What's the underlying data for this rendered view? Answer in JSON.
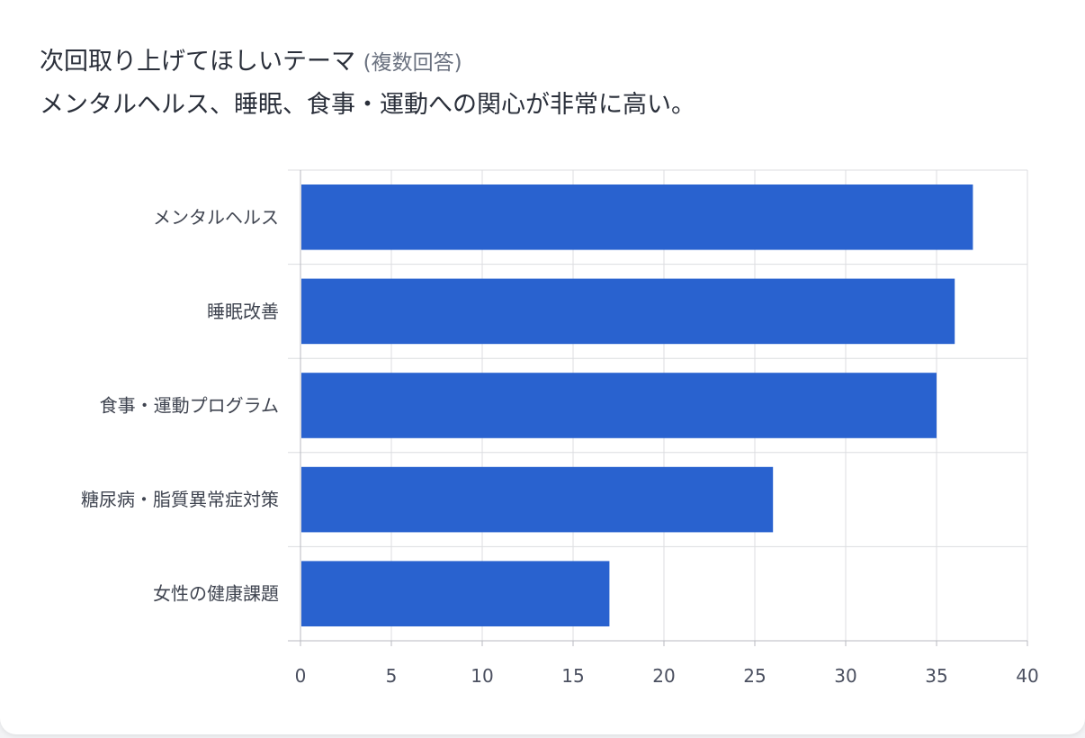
{
  "header": {
    "title": "次回取り上げてほしいテーマ",
    "title_note": "(複数回答)",
    "subtitle": "メンタルヘルス、睡眠、食事・運動への関心が非常に高い。"
  },
  "chart_data": {
    "type": "bar",
    "orientation": "horizontal",
    "categories": [
      "メンタルヘルス",
      "睡眠改善",
      "食事・運動プログラム",
      "糖尿病・脂質異常症対策",
      "女性の健康課題"
    ],
    "values": [
      37,
      36,
      35,
      26,
      17
    ],
    "xlim": [
      0,
      40
    ],
    "xticks": [
      "0",
      "5",
      "10",
      "15",
      "20",
      "25",
      "30",
      "35",
      "40"
    ],
    "grid": true,
    "legend": "none",
    "bar_color": "#2962cf",
    "grid_color": "#dcdde0"
  }
}
